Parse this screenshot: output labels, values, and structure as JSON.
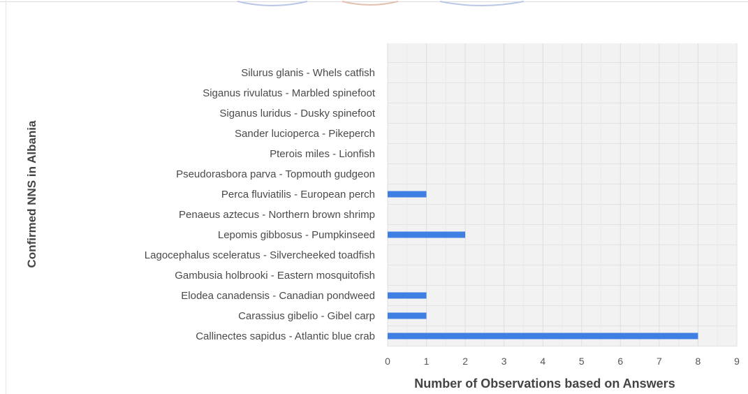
{
  "chart_data": {
    "type": "bar",
    "orientation": "horizontal",
    "title": "",
    "xlabel": "Number of Observations based on Answers",
    "ylabel": "Confirmed NNS in Albania",
    "xlim": [
      0,
      9
    ],
    "xticks": [
      0,
      1,
      2,
      3,
      4,
      5,
      6,
      7,
      8,
      9
    ],
    "grid": true,
    "bar_color": "#3f7fe4",
    "plot_background": "#f2f2f2",
    "categories": [
      "Silurus glanis - Whels catfish",
      "Siganus rivulatus - Marbled spinefoot",
      "Siganus luridus - Dusky spinefoot",
      "Sander lucioperca - Pikeperch",
      "Pterois miles - Lionfish",
      "Pseudorasbora parva - Topmouth gudgeon",
      "Perca fluviatilis - European perch",
      "Penaeus aztecus - Northern brown shrimp",
      "Lepomis gibbosus - Pumpkinseed",
      "Lagocephalus sceleratus - Silvercheeked toadfish",
      "Gambusia holbrooki - Eastern mosquitofish",
      "Elodea canadensis - Canadian pondweed",
      "Carassius gibelio - Gibel carp",
      "Callinectes sapidus - Atlantic blue crab"
    ],
    "values": [
      0,
      0,
      0,
      0,
      0,
      0,
      1,
      0,
      2,
      0,
      0,
      1,
      1,
      8
    ]
  }
}
